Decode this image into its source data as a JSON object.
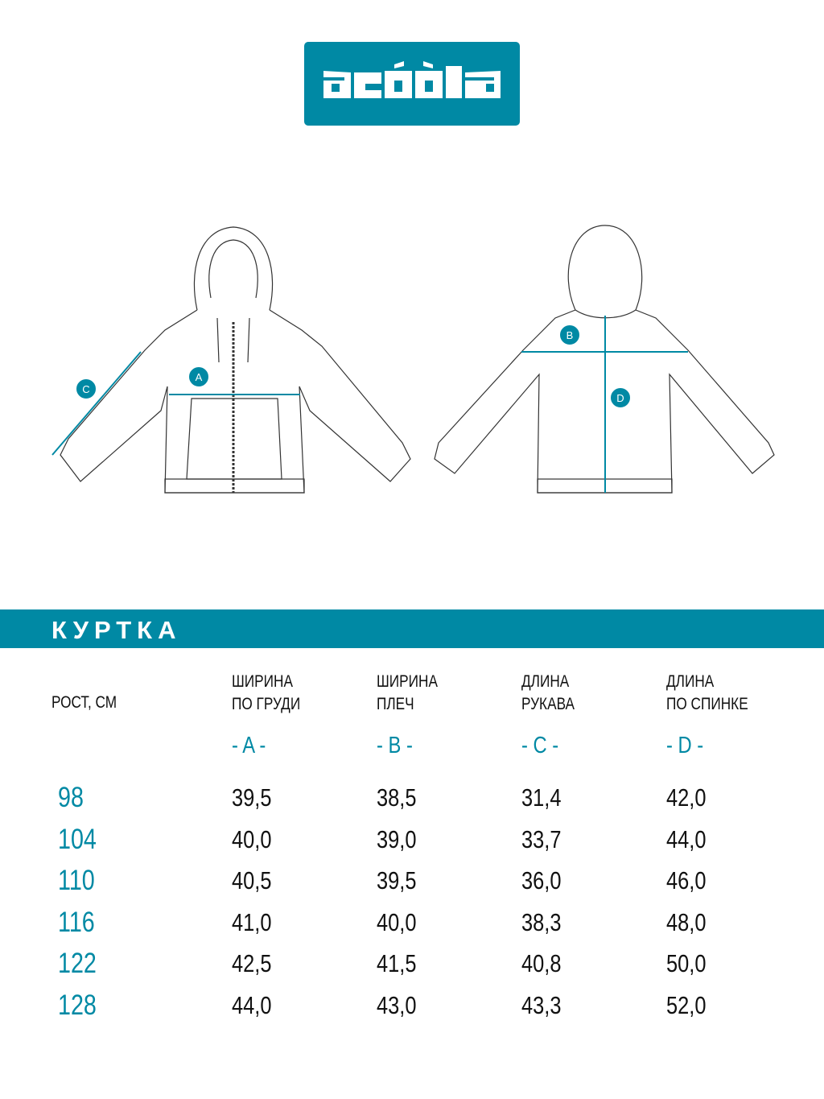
{
  "brand": {
    "logo_text": "acoola",
    "color": "#0089a4"
  },
  "drawing_labels": {
    "front": [
      "A",
      "C"
    ],
    "back": [
      "B",
      "D"
    ]
  },
  "section_title": "КУРТКА",
  "table": {
    "size_header": "РОСТ, СМ",
    "columns": [
      {
        "line1": "ШИРИНА",
        "line2": "ПО ГРУДИ",
        "letter": "- A -"
      },
      {
        "line1": "ШИРИНА",
        "line2": "ПЛЕЧ",
        "letter": "- B -"
      },
      {
        "line1": "ДЛИНА",
        "line2": "РУКАВА",
        "letter": "- C -"
      },
      {
        "line1": "ДЛИНА",
        "line2": "ПО СПИНКЕ",
        "letter": "- D -"
      }
    ],
    "rows": [
      {
        "size": "98",
        "values": [
          "39,5",
          "38,5",
          "31,4",
          "42,0"
        ]
      },
      {
        "size": "104",
        "values": [
          "40,0",
          "39,0",
          "33,7",
          "44,0"
        ]
      },
      {
        "size": "110",
        "values": [
          "40,5",
          "39,5",
          "36,0",
          "46,0"
        ]
      },
      {
        "size": "116",
        "values": [
          "41,0",
          "40,0",
          "38,3",
          "48,0"
        ]
      },
      {
        "size": "122",
        "values": [
          "42,5",
          "41,5",
          "40,8",
          "50,0"
        ]
      },
      {
        "size": "128",
        "values": [
          "44,0",
          "43,0",
          "43,3",
          "52,0"
        ]
      }
    ]
  }
}
